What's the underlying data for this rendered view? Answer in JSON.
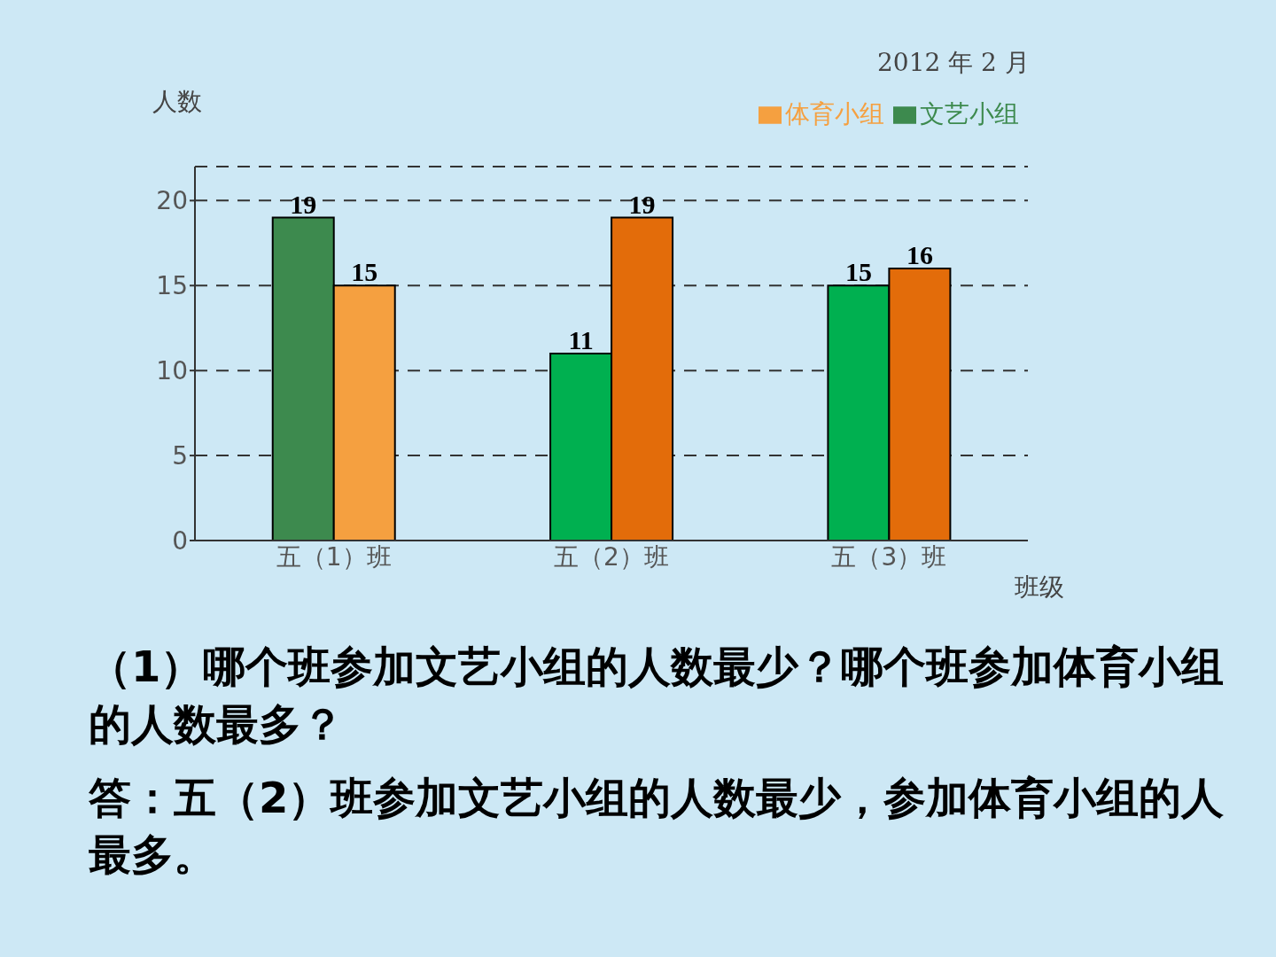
{
  "chart_data": {
    "type": "bar",
    "subtitle": "2012 年 2 月",
    "ylabel": "人数",
    "xlabel": "班级",
    "categories": [
      "五（1）班",
      "五（2）班",
      "五（3）班"
    ],
    "series": [
      {
        "name": "文艺小组",
        "color": "#3d8a4e",
        "colors": [
          "#3d8a4e",
          "#00b050",
          "#00b050"
        ],
        "values": [
          19,
          11,
          15
        ]
      },
      {
        "name": "体育小组",
        "color": "#f5a040",
        "colors": [
          "#f5a040",
          "#e36c0a",
          "#e36c0a"
        ],
        "values": [
          15,
          19,
          16
        ]
      }
    ],
    "ylim": [
      0,
      22
    ],
    "yticks": [
      0,
      5,
      10,
      15,
      20
    ],
    "grid": "y",
    "legend": "top right",
    "data_labels": true,
    "annotations": [
      "（1）哪个班参加文艺小组的人数最少？哪个班参加体育小组的人数最多？",
      "答：五（2）班参加文艺小组的人数最少，参加体育小组的人最多。"
    ]
  }
}
